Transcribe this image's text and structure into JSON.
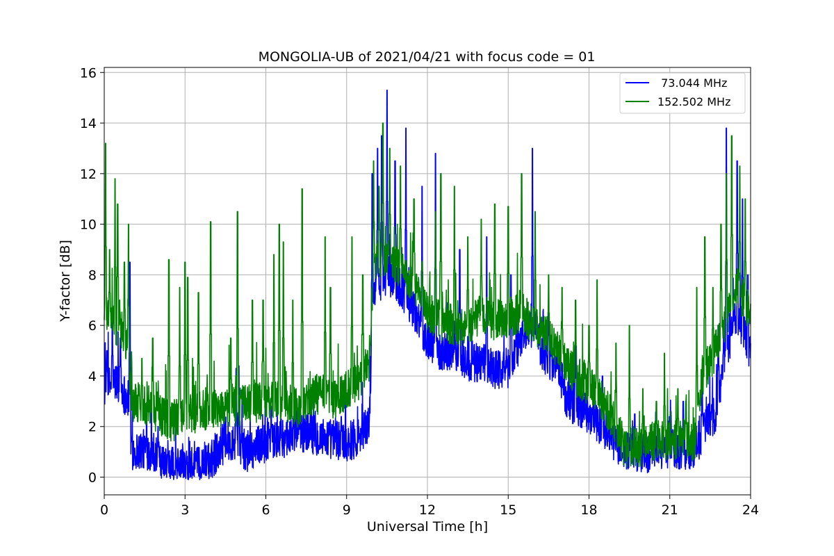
{
  "chart_data": {
    "type": "line",
    "title": "MONGOLIA-UB of 2021/04/21 with focus code = 01",
    "xlabel": "Universal Time [h]",
    "ylabel": "Y-factor [dB]",
    "xlim": [
      0,
      24
    ],
    "ylim": [
      -0.7,
      16.2
    ],
    "xticks": [
      0,
      3,
      6,
      9,
      12,
      15,
      18,
      21,
      24
    ],
    "yticks": [
      0,
      2,
      4,
      6,
      8,
      10,
      12,
      14,
      16
    ],
    "grid": true,
    "legend_position": "top-right",
    "series": [
      {
        "name": " 73.044 MHz",
        "color": "#0000ff",
        "baseline": [
          [
            0.0,
            3.5
          ],
          [
            0.5,
            3.8
          ],
          [
            0.9,
            3.0
          ],
          [
            1.0,
            1.0
          ],
          [
            1.5,
            1.1
          ],
          [
            1.9,
            1.0
          ],
          [
            2.1,
            0.4
          ],
          [
            3.0,
            0.4
          ],
          [
            3.6,
            0.4
          ],
          [
            4.0,
            0.7
          ],
          [
            4.3,
            1.2
          ],
          [
            4.8,
            1.5
          ],
          [
            5.3,
            1.0
          ],
          [
            5.8,
            1.3
          ],
          [
            6.5,
            1.5
          ],
          [
            7.0,
            1.7
          ],
          [
            7.5,
            1.8
          ],
          [
            8.0,
            1.6
          ],
          [
            8.5,
            1.5
          ],
          [
            9.0,
            1.4
          ],
          [
            9.5,
            1.6
          ],
          [
            9.85,
            2.2
          ],
          [
            10.0,
            7.5
          ],
          [
            10.5,
            8.0
          ],
          [
            11.0,
            7.5
          ],
          [
            11.5,
            6.5
          ],
          [
            12.0,
            5.5
          ],
          [
            12.5,
            5.0
          ],
          [
            13.0,
            5.0
          ],
          [
            13.5,
            4.5
          ],
          [
            14.0,
            4.5
          ],
          [
            14.5,
            4.3
          ],
          [
            15.0,
            4.3
          ],
          [
            15.5,
            5.5
          ],
          [
            16.0,
            6.0
          ],
          [
            16.3,
            4.8
          ],
          [
            16.8,
            4.5
          ],
          [
            17.2,
            3.0
          ],
          [
            17.6,
            2.8
          ],
          [
            18.0,
            2.5
          ],
          [
            18.5,
            2.0
          ],
          [
            18.9,
            1.5
          ],
          [
            19.3,
            1.0
          ],
          [
            20.0,
            0.9
          ],
          [
            20.5,
            1.0
          ],
          [
            21.0,
            1.1
          ],
          [
            21.5,
            1.1
          ],
          [
            21.9,
            1.0
          ],
          [
            22.3,
            2.0
          ],
          [
            22.7,
            2.5
          ],
          [
            23.0,
            4.5
          ],
          [
            23.5,
            6.5
          ],
          [
            24.0,
            5.0
          ]
        ],
        "spikes": [
          [
            0.1,
            5.0
          ],
          [
            0.3,
            6.5
          ],
          [
            0.6,
            5.5
          ],
          [
            0.95,
            8.5
          ],
          [
            2.0,
            2.0
          ],
          [
            4.9,
            4.3
          ],
          [
            5.0,
            4.4
          ],
          [
            6.2,
            2.8
          ],
          [
            8.8,
            2.4
          ],
          [
            9.95,
            12.0
          ],
          [
            10.15,
            13.0
          ],
          [
            10.3,
            13.5
          ],
          [
            10.5,
            15.3
          ],
          [
            10.8,
            12.5
          ],
          [
            11.2,
            13.8
          ],
          [
            11.8,
            11.5
          ],
          [
            12.3,
            12.8
          ],
          [
            13.2,
            9.0
          ],
          [
            14.2,
            9.5
          ],
          [
            15.1,
            8.0
          ],
          [
            15.9,
            13.0
          ],
          [
            16.5,
            7.0
          ],
          [
            17.5,
            5.5
          ],
          [
            18.5,
            4.0
          ],
          [
            19.7,
            2.5
          ],
          [
            21.5,
            3.0
          ],
          [
            22.2,
            3.5
          ],
          [
            22.8,
            6.0
          ],
          [
            23.1,
            13.8
          ],
          [
            23.5,
            12.5
          ],
          [
            23.7,
            11.0
          ],
          [
            23.9,
            8.0
          ]
        ]
      },
      {
        "name": "152.502 MHz",
        "color": "#008000",
        "baseline": [
          [
            0.0,
            6.5
          ],
          [
            0.3,
            6.0
          ],
          [
            0.6,
            6.0
          ],
          [
            0.9,
            5.0
          ],
          [
            1.0,
            3.0
          ],
          [
            1.5,
            2.9
          ],
          [
            2.0,
            2.5
          ],
          [
            2.5,
            2.2
          ],
          [
            3.0,
            2.4
          ],
          [
            3.5,
            2.6
          ],
          [
            4.0,
            2.7
          ],
          [
            4.5,
            2.8
          ],
          [
            5.0,
            2.8
          ],
          [
            5.5,
            2.9
          ],
          [
            6.0,
            3.0
          ],
          [
            6.5,
            3.0
          ],
          [
            7.0,
            2.9
          ],
          [
            7.3,
            2.5
          ],
          [
            7.6,
            3.2
          ],
          [
            8.0,
            3.3
          ],
          [
            8.5,
            3.1
          ],
          [
            9.0,
            3.4
          ],
          [
            9.5,
            3.9
          ],
          [
            9.85,
            4.5
          ],
          [
            10.0,
            8.5
          ],
          [
            10.5,
            8.8
          ],
          [
            11.0,
            8.2
          ],
          [
            11.5,
            7.5
          ],
          [
            12.0,
            6.5
          ],
          [
            12.5,
            6.2
          ],
          [
            13.0,
            6.0
          ],
          [
            13.5,
            6.0
          ],
          [
            14.0,
            6.5
          ],
          [
            14.5,
            6.2
          ],
          [
            15.0,
            6.3
          ],
          [
            15.5,
            6.5
          ],
          [
            16.0,
            6.0
          ],
          [
            16.5,
            5.5
          ],
          [
            17.0,
            4.8
          ],
          [
            17.5,
            4.0
          ],
          [
            18.0,
            3.6
          ],
          [
            18.5,
            3.0
          ],
          [
            18.9,
            2.3
          ],
          [
            19.3,
            1.2
          ],
          [
            20.0,
            1.2
          ],
          [
            20.5,
            1.5
          ],
          [
            21.0,
            1.4
          ],
          [
            21.5,
            1.6
          ],
          [
            21.9,
            1.2
          ],
          [
            22.2,
            4.0
          ],
          [
            22.7,
            5.0
          ],
          [
            23.0,
            6.0
          ],
          [
            23.5,
            7.5
          ],
          [
            24.0,
            6.5
          ]
        ],
        "spikes": [
          [
            0.05,
            13.2
          ],
          [
            0.2,
            9.0
          ],
          [
            0.4,
            11.8
          ],
          [
            0.5,
            10.8
          ],
          [
            0.75,
            8.5
          ],
          [
            0.9,
            10.0
          ],
          [
            1.4,
            4.7
          ],
          [
            1.8,
            5.5
          ],
          [
            2.4,
            8.6
          ],
          [
            2.8,
            7.5
          ],
          [
            3.0,
            8.5
          ],
          [
            3.1,
            7.9
          ],
          [
            3.5,
            7.3
          ],
          [
            3.95,
            10.1
          ],
          [
            4.7,
            5.5
          ],
          [
            4.95,
            10.5
          ],
          [
            5.5,
            7.0
          ],
          [
            5.9,
            7.0
          ],
          [
            6.3,
            8.8
          ],
          [
            6.5,
            10.0
          ],
          [
            6.65,
            9.3
          ],
          [
            7.0,
            7.0
          ],
          [
            7.35,
            11.4
          ],
          [
            8.2,
            9.5
          ],
          [
            8.4,
            7.5
          ],
          [
            9.2,
            9.5
          ],
          [
            9.6,
            8.0
          ],
          [
            10.0,
            12.5
          ],
          [
            10.2,
            11.5
          ],
          [
            10.35,
            14.0
          ],
          [
            10.6,
            13.0
          ],
          [
            11.0,
            12.3
          ],
          [
            11.5,
            11.0
          ],
          [
            11.8,
            8.5
          ],
          [
            12.3,
            10.5
          ],
          [
            12.5,
            12.0
          ],
          [
            13.0,
            11.5
          ],
          [
            13.5,
            9.5
          ],
          [
            14.0,
            10.2
          ],
          [
            14.5,
            10.8
          ],
          [
            15.0,
            10.7
          ],
          [
            15.5,
            12.0
          ],
          [
            16.0,
            10.5
          ],
          [
            16.5,
            8.0
          ],
          [
            17.0,
            7.5
          ],
          [
            17.5,
            7.0
          ],
          [
            18.0,
            6.0
          ],
          [
            18.3,
            7.8
          ],
          [
            19.0,
            5.3
          ],
          [
            19.5,
            6.0
          ],
          [
            20.0,
            3.5
          ],
          [
            20.5,
            3.0
          ],
          [
            20.8,
            4.9
          ],
          [
            21.3,
            3.5
          ],
          [
            21.6,
            3.0
          ],
          [
            22.0,
            7.5
          ],
          [
            22.3,
            9.5
          ],
          [
            22.6,
            7.5
          ],
          [
            22.9,
            10.0
          ],
          [
            23.1,
            12.0
          ],
          [
            23.3,
            13.5
          ],
          [
            23.6,
            12.3
          ],
          [
            23.8,
            11.0
          ]
        ]
      }
    ]
  }
}
